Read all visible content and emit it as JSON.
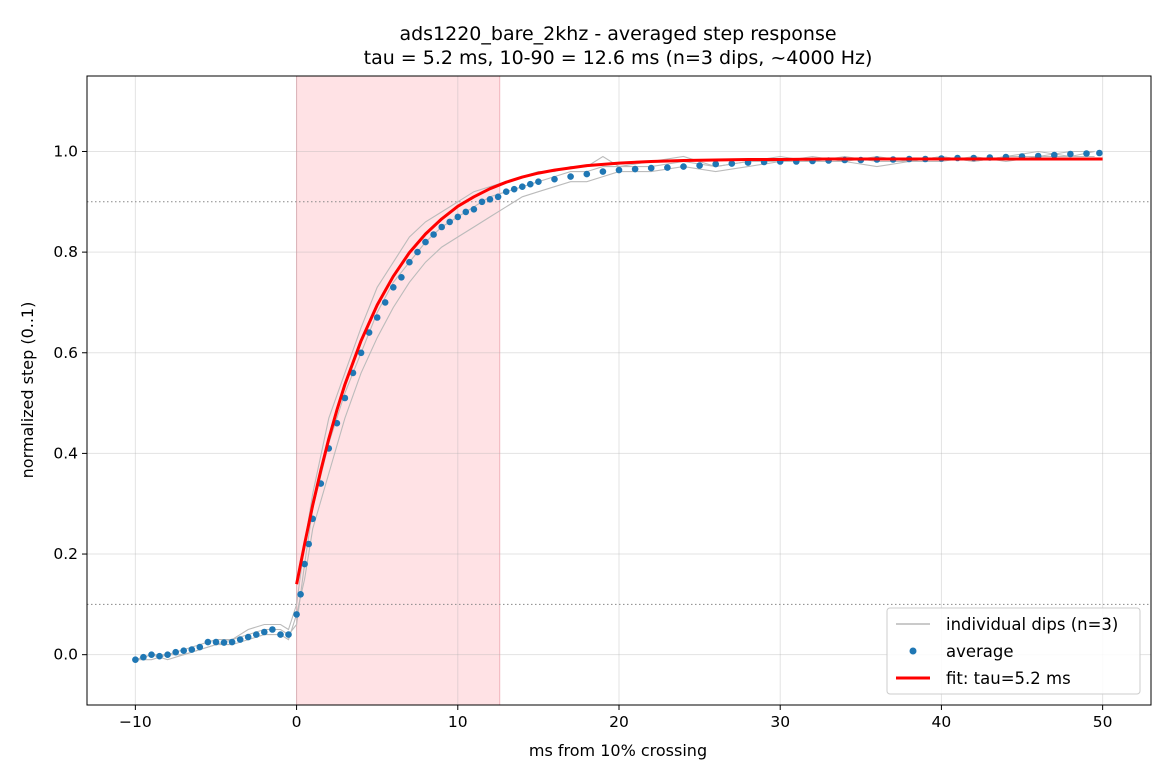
{
  "chart_data": {
    "type": "line",
    "title": "ads1220_bare_2khz - averaged step response",
    "subtitle": "tau = 5.2 ms, 10-90 = 12.6 ms  (n=3 dips, ~4000 Hz)",
    "xlabel": "ms from 10% crossing",
    "ylabel": "normalized step (0..1)",
    "xlim": [
      -13,
      53
    ],
    "ylim": [
      -0.1,
      1.15
    ],
    "xticks": [
      -10,
      0,
      10,
      20,
      30,
      40,
      50
    ],
    "xtick_labels": [
      "−10",
      "0",
      "10",
      "20",
      "30",
      "40",
      "50"
    ],
    "yticks": [
      0.0,
      0.2,
      0.4,
      0.6,
      0.8,
      1.0
    ],
    "ytick_labels": [
      "0.0",
      "0.2",
      "0.4",
      "0.6",
      "0.8",
      "1.0"
    ],
    "grid": true,
    "legend_position": "lower-right",
    "shaded_region": {
      "x0": 0,
      "x1": 12.6,
      "color": "#ffe2e5"
    },
    "reference_lines": [
      {
        "y": 0.1,
        "style": "dotted",
        "color": "#888888"
      },
      {
        "y": 0.9,
        "style": "dotted",
        "color": "#888888"
      }
    ],
    "series": [
      {
        "name": "individual dips (n=3)",
        "kind": "line",
        "color": "#bbbbbb",
        "lines": [
          {
            "x": [
              -10,
              -9,
              -8,
              -7,
              -6,
              -5,
              -4,
              -3,
              -2,
              -1,
              -0.5,
              0,
              0.5,
              1,
              2,
              3,
              4,
              5,
              6,
              7,
              8,
              9,
              10,
              11,
              12,
              13,
              14,
              15,
              16,
              17,
              18,
              19,
              20,
              22,
              24,
              26,
              28,
              30,
              32,
              34,
              36,
              38,
              40,
              42,
              44,
              46,
              48,
              49.5
            ],
            "y": [
              -0.01,
              0.0,
              0.0,
              0.01,
              0.02,
              0.03,
              0.03,
              0.05,
              0.06,
              0.06,
              0.05,
              0.1,
              0.22,
              0.32,
              0.47,
              0.56,
              0.65,
              0.73,
              0.78,
              0.83,
              0.86,
              0.88,
              0.9,
              0.92,
              0.93,
              0.94,
              0.95,
              0.96,
              0.96,
              0.97,
              0.97,
              0.99,
              0.97,
              0.97,
              0.98,
              0.97,
              0.98,
              0.99,
              0.98,
              0.99,
              0.98,
              0.98,
              0.99,
              0.98,
              0.99,
              0.99,
              1.0,
              1.0
            ]
          },
          {
            "x": [
              -10,
              -9,
              -8,
              -7,
              -6,
              -5,
              -4,
              -3,
              -2,
              -1,
              -0.5,
              0,
              0.5,
              1,
              2,
              3,
              4,
              5,
              6,
              7,
              8,
              9,
              10,
              11,
              12,
              13,
              14,
              15,
              16,
              17,
              18,
              19,
              20,
              22,
              24,
              26,
              28,
              30,
              32,
              34,
              36,
              38,
              40,
              42,
              44,
              46,
              48,
              49.5
            ],
            "y": [
              -0.01,
              -0.01,
              0.0,
              0.0,
              0.01,
              0.02,
              0.02,
              0.03,
              0.04,
              0.04,
              0.03,
              0.08,
              0.15,
              0.25,
              0.36,
              0.47,
              0.56,
              0.63,
              0.69,
              0.74,
              0.78,
              0.81,
              0.83,
              0.85,
              0.87,
              0.89,
              0.91,
              0.92,
              0.93,
              0.94,
              0.94,
              0.95,
              0.96,
              0.96,
              0.97,
              0.96,
              0.97,
              0.98,
              0.98,
              0.98,
              0.97,
              0.98,
              0.98,
              0.99,
              0.98,
              0.99,
              0.99,
              0.99
            ]
          },
          {
            "x": [
              -10,
              -9,
              -8,
              -7,
              -6,
              -5,
              -4,
              -3,
              -2,
              -1,
              -0.5,
              0,
              0.5,
              1,
              2,
              3,
              4,
              5,
              6,
              7,
              8,
              9,
              10,
              11,
              12,
              13,
              14,
              15,
              16,
              17,
              18,
              19,
              20,
              22,
              24,
              26,
              28,
              30,
              32,
              34,
              36,
              38,
              40,
              42,
              44,
              46,
              48,
              49.5
            ],
            "y": [
              -0.01,
              0.0,
              -0.01,
              0.0,
              0.01,
              0.02,
              0.03,
              0.04,
              0.05,
              0.05,
              0.04,
              0.06,
              0.18,
              0.29,
              0.42,
              0.52,
              0.6,
              0.68,
              0.74,
              0.78,
              0.82,
              0.85,
              0.87,
              0.89,
              0.91,
              0.92,
              0.93,
              0.94,
              0.95,
              0.96,
              0.96,
              0.97,
              0.97,
              0.98,
              0.99,
              0.97,
              0.98,
              0.98,
              0.99,
              0.98,
              0.99,
              0.98,
              0.99,
              0.98,
              0.99,
              1.0,
              0.99,
              1.0
            ]
          }
        ]
      },
      {
        "name": "average",
        "kind": "scatter",
        "color": "#1f77b4",
        "x": [
          -10,
          -9.5,
          -9,
          -8.5,
          -8,
          -7.5,
          -7,
          -6.5,
          -6,
          -5.5,
          -5,
          -4.5,
          -4,
          -3.5,
          -3,
          -2.5,
          -2,
          -1.5,
          -1,
          -0.5,
          0,
          0.25,
          0.5,
          0.75,
          1,
          1.5,
          2,
          2.5,
          3,
          3.5,
          4,
          4.5,
          5,
          5.5,
          6,
          6.5,
          7,
          7.5,
          8,
          8.5,
          9,
          9.5,
          10,
          10.5,
          11,
          11.5,
          12,
          12.5,
          13,
          13.5,
          14,
          14.5,
          15,
          16,
          17,
          18,
          19,
          20,
          21,
          22,
          23,
          24,
          25,
          26,
          27,
          28,
          29,
          30,
          31,
          32,
          33,
          34,
          35,
          36,
          37,
          38,
          39,
          40,
          41,
          42,
          43,
          44,
          45,
          46,
          47,
          48,
          49,
          49.8
        ],
        "y": [
          -0.01,
          -0.005,
          0.0,
          -0.003,
          0.0,
          0.005,
          0.008,
          0.01,
          0.015,
          0.025,
          0.025,
          0.024,
          0.025,
          0.03,
          0.035,
          0.04,
          0.045,
          0.05,
          0.04,
          0.04,
          0.08,
          0.12,
          0.18,
          0.22,
          0.27,
          0.34,
          0.41,
          0.46,
          0.51,
          0.56,
          0.6,
          0.64,
          0.67,
          0.7,
          0.73,
          0.75,
          0.78,
          0.8,
          0.82,
          0.835,
          0.85,
          0.86,
          0.87,
          0.88,
          0.885,
          0.9,
          0.905,
          0.91,
          0.92,
          0.925,
          0.93,
          0.935,
          0.94,
          0.945,
          0.95,
          0.955,
          0.96,
          0.963,
          0.965,
          0.967,
          0.968,
          0.97,
          0.972,
          0.975,
          0.976,
          0.978,
          0.979,
          0.98,
          0.98,
          0.981,
          0.982,
          0.983,
          0.983,
          0.984,
          0.984,
          0.985,
          0.985,
          0.986,
          0.987,
          0.987,
          0.988,
          0.989,
          0.99,
          0.991,
          0.993,
          0.995,
          0.996,
          0.997
        ]
      },
      {
        "name": "fit: tau=5.2 ms",
        "kind": "line",
        "color": "#ff0000",
        "x": [
          0,
          0.5,
          1,
          1.5,
          2,
          2.5,
          3,
          4,
          5,
          6,
          7,
          8,
          9,
          10,
          11,
          12,
          13,
          14,
          15,
          16,
          18,
          20,
          22,
          24,
          26,
          28,
          30,
          33,
          36,
          40,
          45,
          50
        ],
        "y": [
          0.14,
          0.22,
          0.297,
          0.366,
          0.429,
          0.486,
          0.537,
          0.624,
          0.695,
          0.752,
          0.799,
          0.836,
          0.866,
          0.891,
          0.91,
          0.926,
          0.939,
          0.949,
          0.957,
          0.963,
          0.972,
          0.977,
          0.98,
          0.982,
          0.983,
          0.984,
          0.984,
          0.985,
          0.985,
          0.985,
          0.985,
          0.985
        ]
      }
    ]
  },
  "legend": {
    "items": [
      {
        "label": "individual dips (n=3)",
        "marker": "line",
        "color": "#aaaaaa"
      },
      {
        "label": "average",
        "marker": "dot",
        "color": "#1f77b4"
      },
      {
        "label": "fit: tau=5.2 ms",
        "marker": "line",
        "color": "#ff0000"
      }
    ]
  }
}
